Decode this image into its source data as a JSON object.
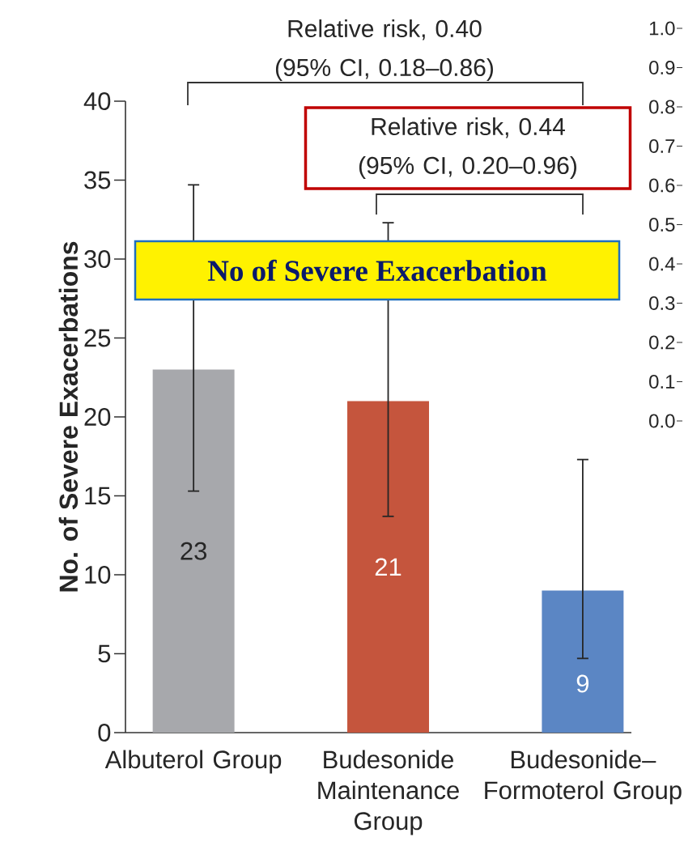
{
  "chart_data": {
    "type": "bar",
    "title": "No of Severe Exacerbation",
    "ylabel": "No. of Severe Exacerbations",
    "categories": [
      "Albuterol Group",
      "Budesonide Maintenance Group",
      "Budesonide–Formoterol Group"
    ],
    "values": [
      23,
      21,
      9
    ],
    "colors": [
      "#a7a8ac",
      "#c5553d",
      "#5b86c4"
    ],
    "errors": [
      [
        15.3,
        34.7
      ],
      [
        13.7,
        32.3
      ],
      [
        4.7,
        17.3
      ]
    ],
    "data_labels": true,
    "ylim": [
      0,
      40
    ],
    "yticks": [
      0,
      5,
      10,
      15,
      20,
      25,
      30,
      35,
      40
    ],
    "y2lim": [
      0,
      1
    ],
    "y2ticks": [
      {
        "value": 0,
        "label": "0.0"
      },
      {
        "value": 0.1,
        "label": "0.1"
      },
      {
        "value": 0.2,
        "label": "0.2"
      },
      {
        "value": 0.3,
        "label": "0.3"
      },
      {
        "value": 0.4,
        "label": "0.4"
      },
      {
        "value": 0.5,
        "label": "0.5"
      },
      {
        "value": 0.6,
        "label": "0.6"
      },
      {
        "value": 0.7,
        "label": "0.7"
      },
      {
        "value": 0.8,
        "label": "0.8"
      },
      {
        "value": 0.9,
        "label": "0.9"
      },
      {
        "value": 1,
        "label": "1.0"
      }
    ],
    "annotations": [
      "Relative risk, 0.40 (95% CI, 0.18–0.86)",
      "Relative risk, 0.44 (95% CI, 0.20–0.96)"
    ]
  }
}
